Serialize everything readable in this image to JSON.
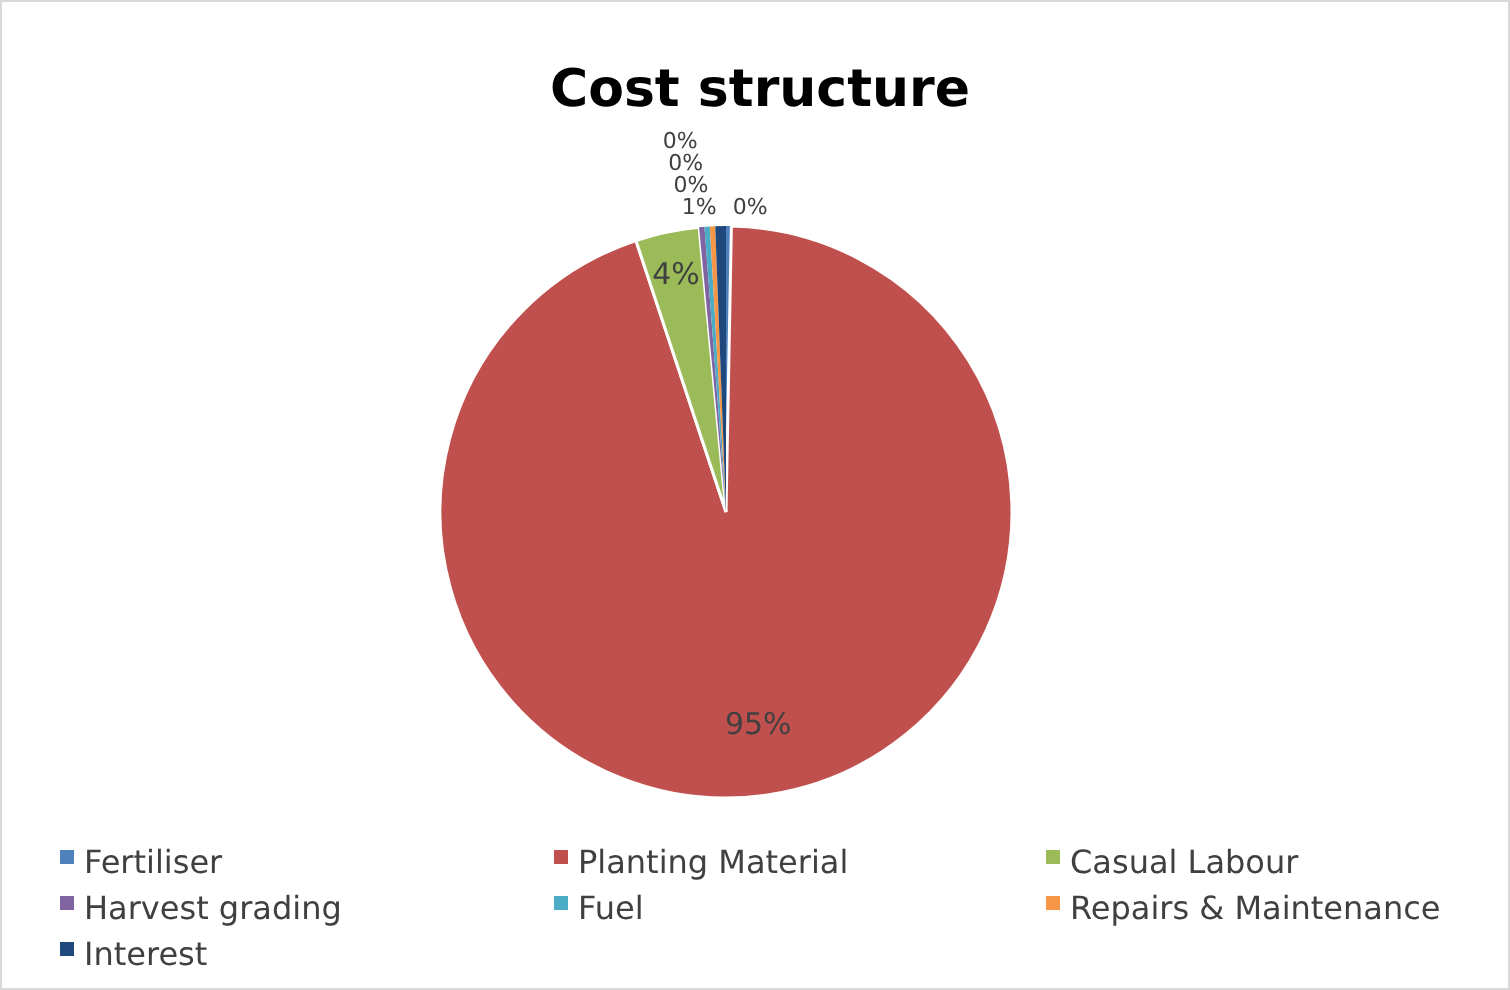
{
  "chart_data": {
    "type": "pie",
    "title": "Cost structure",
    "categories": [
      "Fertiliser",
      "Planting Material",
      "Casual Labour",
      "Harvest grading",
      "Fuel",
      "Repairs & Maintenance",
      "Interest"
    ],
    "values": [
      0.3,
      94.6,
      3.6,
      0.3,
      0.3,
      0.3,
      0.6
    ],
    "colors": [
      "#4f81bd",
      "#c0504d",
      "#9bbb59",
      "#8064a2",
      "#4bacc6",
      "#f79646",
      "#1f497d"
    ],
    "value_labels": [
      "0%",
      "95%",
      "4%",
      "0%",
      "0%",
      "0%",
      "1%"
    ],
    "legend": "bottom"
  }
}
